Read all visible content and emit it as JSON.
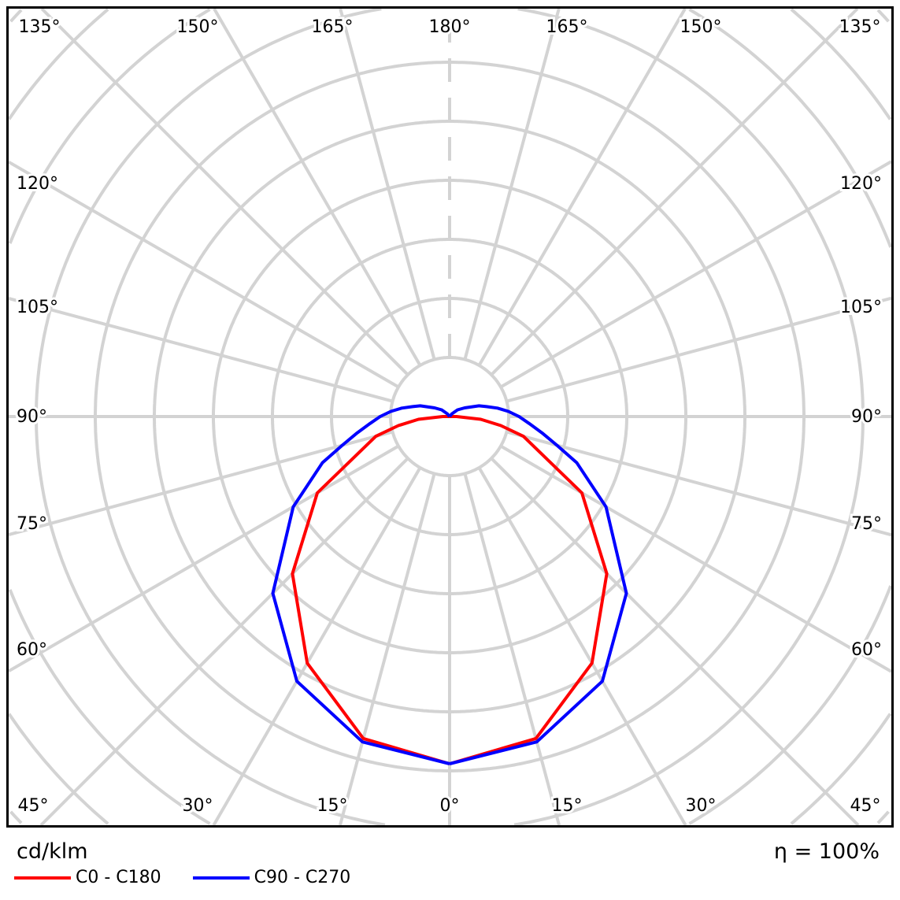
{
  "chart_data": {
    "type": "polar",
    "unit_label": "cd/klm",
    "efficiency_label": "η = 100%",
    "angle_labels": {
      "top": [
        "135°",
        "150°",
        "165°",
        "180°",
        "165°",
        "150°",
        "135°"
      ],
      "left": [
        "120°",
        "105°",
        "90°",
        "75°",
        "60°"
      ],
      "right": [
        "120°",
        "105°",
        "90°",
        "75°",
        "60°"
      ],
      "bottom": [
        "45°",
        "30°",
        "15°",
        "0°",
        "15°",
        "30°",
        "45°"
      ]
    },
    "grid": true,
    "legend_placement": "bottom-left",
    "series": [
      {
        "name": "C0 - C180",
        "color": "#ff0000",
        "angles": [
          0,
          15,
          30,
          45,
          60,
          75,
          80,
          85,
          90,
          95
        ],
        "values_relative": [
          1.0,
          0.96,
          0.82,
          0.64,
          0.44,
          0.22,
          0.15,
          0.09,
          0.02,
          0.0
        ]
      },
      {
        "name": "C90 - C270",
        "color": "#0000ff",
        "angles": [
          0,
          15,
          30,
          45,
          60,
          70,
          75,
          80,
          85,
          90,
          95,
          100,
          105,
          110,
          120,
          130,
          140,
          150
        ],
        "values_relative": [
          1.0,
          0.97,
          0.88,
          0.72,
          0.52,
          0.39,
          0.32,
          0.27,
          0.23,
          0.2,
          0.17,
          0.14,
          0.11,
          0.09,
          0.05,
          0.03,
          0.01,
          0.0
        ]
      }
    ]
  }
}
